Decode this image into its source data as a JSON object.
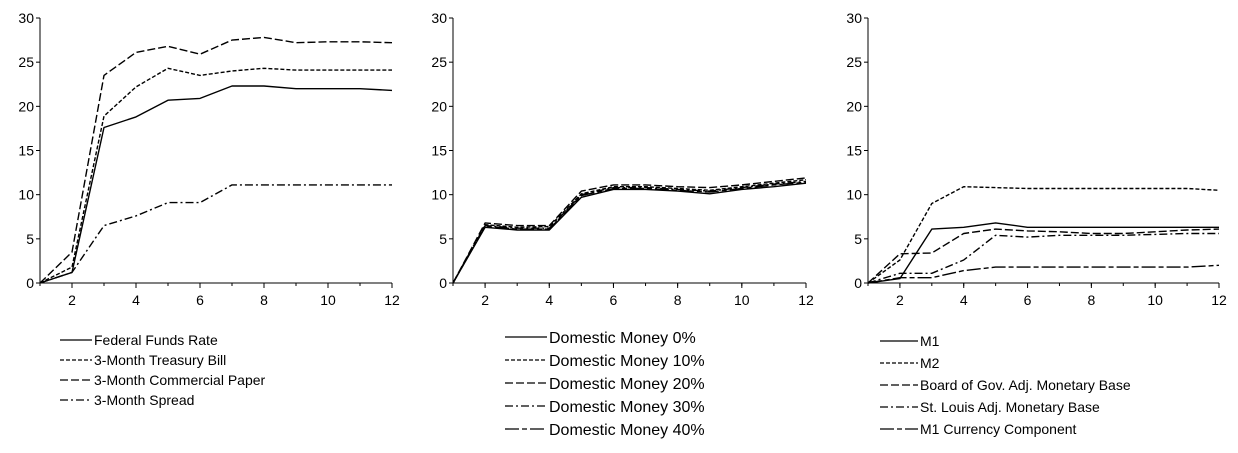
{
  "chart_data": [
    {
      "type": "line",
      "x": [
        1,
        2,
        3,
        4,
        5,
        6,
        7,
        8,
        9,
        10,
        11,
        12
      ],
      "xticks": [
        2,
        4,
        6,
        8,
        10,
        12
      ],
      "yticks": [
        0,
        5,
        10,
        15,
        20,
        25,
        30
      ],
      "xlim": [
        1,
        12
      ],
      "ylim": [
        0,
        30
      ],
      "legend_position": "bottom",
      "series": [
        {
          "name": "Federal Funds Rate",
          "dash": "solid",
          "values": [
            0,
            1.2,
            17.6,
            18.8,
            20.7,
            20.9,
            22.3,
            22.3,
            22.0,
            22.0,
            22.0,
            21.8
          ]
        },
        {
          "name": "3-Month Treasury Bill",
          "dash": "short",
          "values": [
            0,
            1.8,
            18.9,
            22.2,
            24.3,
            23.5,
            24.0,
            24.3,
            24.1,
            24.1,
            24.1,
            24.1
          ]
        },
        {
          "name": "3-Month Commercial Paper",
          "dash": "long",
          "values": [
            0,
            3.5,
            23.5,
            26.1,
            26.8,
            25.9,
            27.5,
            27.8,
            27.2,
            27.3,
            27.3,
            27.2
          ]
        },
        {
          "name": "3-Month Spread",
          "dash": "dashdot",
          "values": [
            0,
            1.2,
            6.5,
            7.6,
            9.1,
            9.1,
            11.1,
            11.1,
            11.1,
            11.1,
            11.1,
            11.1
          ]
        }
      ]
    },
    {
      "type": "line",
      "x": [
        1,
        2,
        3,
        4,
        5,
        6,
        7,
        8,
        9,
        10,
        11,
        12
      ],
      "xticks": [
        2,
        4,
        6,
        8,
        10,
        12
      ],
      "yticks": [
        0,
        5,
        10,
        15,
        20,
        25,
        30
      ],
      "xlim": [
        1,
        12
      ],
      "ylim": [
        0,
        30
      ],
      "legend_position": "bottom",
      "series": [
        {
          "name": "Domestic Money 0%",
          "dash": "solid",
          "values": [
            0,
            6.3,
            6.0,
            6.0,
            9.7,
            10.6,
            10.6,
            10.4,
            10.1,
            10.6,
            10.9,
            11.3
          ]
        },
        {
          "name": "Domestic Money 10%",
          "dash": "short",
          "values": [
            0,
            6.6,
            6.3,
            6.4,
            10.1,
            10.9,
            10.9,
            10.7,
            10.5,
            10.9,
            11.3,
            11.7
          ]
        },
        {
          "name": "Domestic Money 20%",
          "dash": "long",
          "values": [
            0,
            6.8,
            6.5,
            6.5,
            10.4,
            11.1,
            11.1,
            10.9,
            10.8,
            11.1,
            11.5,
            11.9
          ]
        },
        {
          "name": "Domestic Money 30%",
          "dash": "dashdot",
          "values": [
            0,
            6.5,
            6.2,
            6.2,
            10.0,
            10.8,
            10.8,
            10.6,
            10.4,
            10.8,
            11.2,
            11.5
          ]
        },
        {
          "name": "Domestic Money 40%",
          "dash": "longshort",
          "values": [
            0,
            6.4,
            6.1,
            6.1,
            9.9,
            10.7,
            10.7,
            10.5,
            10.3,
            10.7,
            11.1,
            11.4
          ]
        }
      ]
    },
    {
      "type": "line",
      "x": [
        1,
        2,
        3,
        4,
        5,
        6,
        7,
        8,
        9,
        10,
        11,
        12
      ],
      "xticks": [
        2,
        4,
        6,
        8,
        10,
        12
      ],
      "yticks": [
        0,
        5,
        10,
        15,
        20,
        25,
        30
      ],
      "xlim": [
        1,
        12
      ],
      "ylim": [
        0,
        30
      ],
      "legend_position": "bottom",
      "series": [
        {
          "name": "M1",
          "dash": "solid",
          "values": [
            0,
            0.5,
            6.1,
            6.3,
            6.8,
            6.3,
            6.3,
            6.3,
            6.3,
            6.3,
            6.3,
            6.3
          ]
        },
        {
          "name": "M2",
          "dash": "short",
          "values": [
            0,
            2.6,
            9.0,
            10.9,
            10.8,
            10.7,
            10.7,
            10.7,
            10.7,
            10.7,
            10.7,
            10.5
          ]
        },
        {
          "name": "Board of Gov. Adj. Monetary Base",
          "dash": "long",
          "values": [
            0,
            3.3,
            3.4,
            5.6,
            6.1,
            5.9,
            5.8,
            5.6,
            5.6,
            5.8,
            6.0,
            6.1
          ]
        },
        {
          "name": "St. Louis Adj. Monetary Base",
          "dash": "dashdot",
          "values": [
            0,
            1.1,
            1.1,
            2.6,
            5.4,
            5.2,
            5.4,
            5.4,
            5.4,
            5.5,
            5.6,
            5.6
          ]
        },
        {
          "name": "M1 Currency Component",
          "dash": "longshort",
          "values": [
            0,
            0.6,
            0.6,
            1.4,
            1.8,
            1.8,
            1.8,
            1.8,
            1.8,
            1.8,
            1.8,
            2.0
          ]
        }
      ]
    }
  ]
}
